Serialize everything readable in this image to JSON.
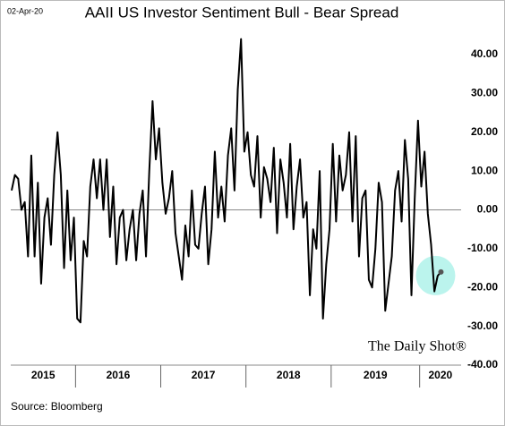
{
  "chart_data": {
    "type": "line",
    "title": "AAII US Investor Sentiment  Bull - Bear Spread",
    "date_note": "02-Apr-20",
    "source": "Source: Bloomberg",
    "watermark": "The Daily Shot®",
    "color": "#000000",
    "ylim": [
      -40,
      40
    ],
    "yticks": [
      {
        "value": -40,
        "label": "-40.00"
      },
      {
        "value": -30,
        "label": "-30.00"
      },
      {
        "value": -20,
        "label": "-20.00"
      },
      {
        "value": -10,
        "label": "-10.00"
      },
      {
        "value": 0,
        "label": "0.00"
      },
      {
        "value": 10,
        "label": "10.00"
      },
      {
        "value": 20,
        "label": "20.00"
      },
      {
        "value": 30,
        "label": "30.00"
      },
      {
        "value": 40,
        "label": "40.00"
      }
    ],
    "years": [
      {
        "label": "2015",
        "values": [
          5,
          9,
          8,
          0,
          2,
          -12,
          14,
          -12,
          7,
          -19,
          -2,
          3,
          -9,
          9,
          20,
          9,
          -15,
          5,
          -13,
          -2
        ]
      },
      {
        "label": "2016",
        "values": [
          -28,
          -29,
          -8,
          -12,
          6,
          13,
          3,
          13,
          0,
          13,
          -7,
          6,
          -14,
          -2,
          0,
          -13,
          -5,
          0,
          -13,
          -1,
          5,
          -12,
          10,
          28,
          13,
          21
        ]
      },
      {
        "label": "2017",
        "values": [
          7,
          -1,
          3,
          10,
          -6,
          -12,
          -18,
          -4,
          -12,
          5,
          -9,
          -10,
          -1,
          6,
          -14,
          -5,
          15,
          -2,
          6,
          -3,
          14,
          21,
          5,
          31,
          44,
          15
        ]
      },
      {
        "label": "2018",
        "values": [
          20,
          9,
          6,
          19,
          -2,
          11,
          8,
          2,
          16,
          -6,
          13,
          7,
          -2,
          17,
          -5,
          6,
          13,
          -2,
          2,
          -22,
          -5,
          -10,
          10,
          -28,
          -14,
          -5
        ]
      },
      {
        "label": "2019",
        "values": [
          17,
          -3,
          14,
          5,
          9,
          20,
          -3,
          19,
          -12,
          3,
          5,
          -18,
          -20,
          -10,
          7,
          2,
          -26,
          -19,
          -12,
          5,
          10,
          -3,
          18,
          8,
          -22,
          3,
          23
        ]
      },
      {
        "label": "2020",
        "values": [
          6,
          15,
          -1,
          -9,
          -21,
          -17,
          -16
        ]
      }
    ]
  }
}
